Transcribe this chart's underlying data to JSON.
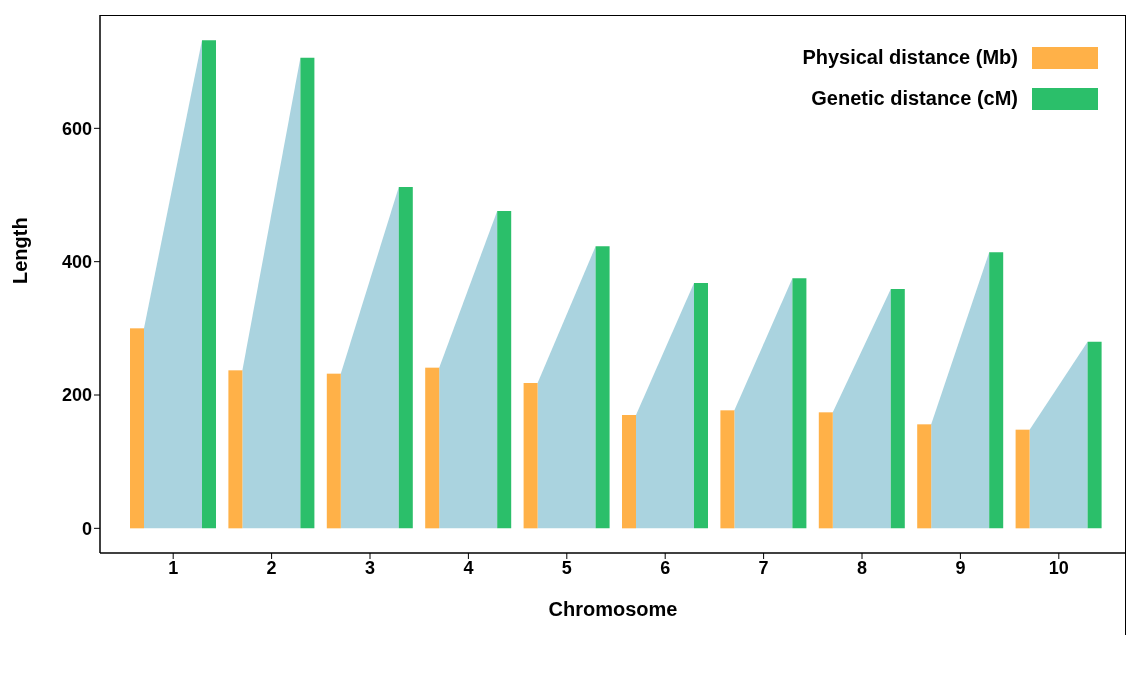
{
  "chart_data": {
    "type": "bar",
    "xlabel": "Chromosome",
    "ylabel": "Length",
    "categories": [
      "1",
      "2",
      "3",
      "4",
      "5",
      "6",
      "7",
      "8",
      "9",
      "10"
    ],
    "series": [
      {
        "name": "Physical distance (Mb)",
        "color": "#ffb148",
        "values": [
          300,
          237,
          232,
          241,
          218,
          170,
          177,
          174,
          156,
          148
        ]
      },
      {
        "name": "Genetic distance (cM)",
        "color": "#2bbf6a",
        "values": [
          732,
          706,
          512,
          476,
          423,
          368,
          375,
          359,
          414,
          280
        ]
      }
    ],
    "ylim": [
      -37,
      770
    ],
    "yticks": [
      0,
      200,
      400,
      600
    ],
    "legend": "top right"
  }
}
